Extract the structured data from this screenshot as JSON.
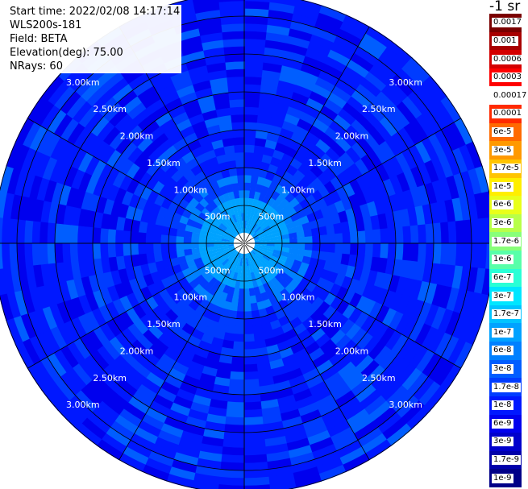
{
  "header": {
    "start_time": "Start time: 2022/02/08 14:17:14",
    "instrument": "WLS200s-181",
    "field": "Field: BETA",
    "elevation": "Elevation(deg): 75.00",
    "nrays": "NRays: 60"
  },
  "colorbar": {
    "title": "-1 sr",
    "labels": [
      "0.0017",
      "0.001",
      "0.0006",
      "0.0003",
      "0.00017",
      "0.0001",
      "6e-5",
      "3e-5",
      "1.7e-5",
      "1e-5",
      "6e-6",
      "3e-6",
      "1.7e-6",
      "1e-6",
      "6e-7",
      "3e-7",
      "1.7e-7",
      "1e-7",
      "6e-8",
      "3e-8",
      "1.7e-8",
      "1e-8",
      "6e-9",
      "3e-9",
      "1.7e-9",
      "1e-9"
    ],
    "colors": [
      "#7a0000",
      "#a80000",
      "#d40000",
      "#ff0000",
      "#ffffff",
      "#ff2a00",
      "#ff6a00",
      "#ff9900",
      "#ffc400",
      "#ffee00",
      "#e9ff1a",
      "#b8ff49",
      "#88ff79",
      "#58ffa9",
      "#2affd6",
      "#00e6ff",
      "#00c4ff",
      "#00a2ff",
      "#0080ff",
      "#005eff",
      "#003cff",
      "#0018ff",
      "#0000ee",
      "#0000cc",
      "#0000aa",
      "#000088"
    ]
  },
  "chart_data": {
    "type": "heatmap",
    "projection": "polar",
    "nrays": 60,
    "field": "BETA",
    "units": "-1 sr",
    "range_rings_km": [
      0.5,
      1.0,
      1.5,
      2.0,
      2.5,
      3.0
    ],
    "range_labels": [
      "500m",
      "1.00km",
      "1.50km",
      "2.00km",
      "2.50km",
      "3.00km"
    ],
    "max_range_km": 3.3,
    "blind_range_km": 0.14,
    "near_range_value": "1e-7",
    "inner_band_value": "6e-8",
    "mid_range_value": "1.7e-8",
    "far_range_values": [
      "1e-8",
      "6e-9",
      "1.7e-8",
      "3e-8"
    ],
    "spokes_deg": [
      0,
      30,
      60,
      90,
      120,
      150,
      180,
      210,
      240,
      270,
      300,
      330
    ]
  }
}
